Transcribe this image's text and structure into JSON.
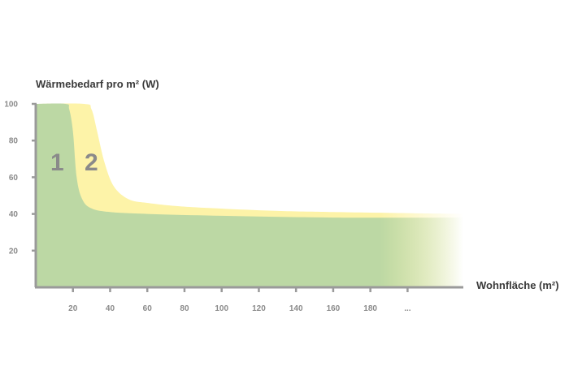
{
  "chart_data": {
    "type": "area",
    "ylabel": "Wärmebedarf pro m² (W)",
    "xlabel": "Wohnfläche (m²)",
    "xlim": [
      0,
      230
    ],
    "ylim": [
      0,
      100
    ],
    "x_ticks": [
      "20",
      "40",
      "60",
      "80",
      "100",
      "120",
      "140",
      "160",
      "180",
      "..."
    ],
    "x_tick_values": [
      20,
      40,
      60,
      80,
      100,
      120,
      140,
      160,
      180,
      200
    ],
    "y_ticks": [
      "20",
      "40",
      "60",
      "80",
      "100"
    ],
    "y_tick_values": [
      20,
      40,
      60,
      80,
      100
    ],
    "series": [
      {
        "name": "1",
        "color": "#bcd8a4",
        "x": [
          0,
          16,
          18,
          20,
          22,
          25,
          30,
          40,
          60,
          100,
          160,
          230
        ],
        "y": [
          100,
          100,
          97,
          85,
          60,
          48,
          43,
          41,
          40,
          39,
          38,
          38
        ]
      },
      {
        "name": "2",
        "color": "#fdf3a8",
        "x": [
          0,
          26,
          30,
          33,
          37,
          42,
          50,
          60,
          80,
          120,
          160,
          230
        ],
        "y": [
          100,
          100,
          97,
          85,
          68,
          55,
          48,
          46,
          44,
          42,
          41,
          40
        ]
      }
    ],
    "fade_start_x": 185,
    "grid": false,
    "legend": "inline"
  }
}
